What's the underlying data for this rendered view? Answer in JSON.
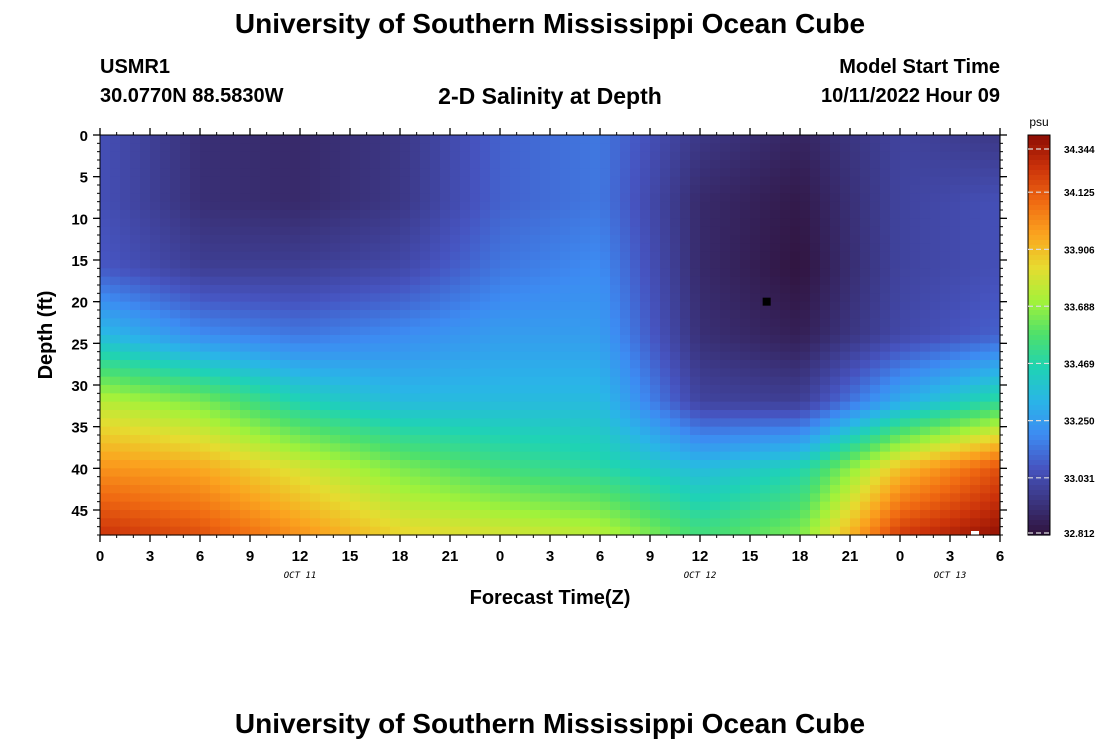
{
  "header": {
    "title": "University of Southern Mississippi Ocean Cube",
    "station": "USMR1",
    "coordinates": "30.0770N  88.5830W",
    "subtitle": "2-D Salinity at Depth",
    "model_start_label": "Model Start Time",
    "model_start_value": "10/11/2022 Hour 09"
  },
  "footer": {
    "title": "University of Southern Mississippi Ocean Cube"
  },
  "colors": {
    "palette": [
      "#30123b",
      "#3b3580",
      "#4654c0",
      "#3d8bf2",
      "#2ab4e8",
      "#1fd3b4",
      "#4de06c",
      "#a2f23a",
      "#e6dc30",
      "#fba41f",
      "#f06a12",
      "#cc330a",
      "#8b0c03"
    ]
  },
  "chart_data": {
    "type": "heatmap",
    "xlabel": "Forecast Time(Z)",
    "ylabel": "Depth (ft)",
    "x_ticks": [
      "0",
      "3",
      "6",
      "9",
      "12",
      "15",
      "18",
      "21",
      "0",
      "3",
      "6",
      "9",
      "12",
      "15",
      "18",
      "21",
      "0",
      "3",
      "6"
    ],
    "xlim_hours": [
      0,
      54
    ],
    "date_labels": [
      {
        "label": "OCT 11",
        "at_hour": 12
      },
      {
        "label": "OCT 12",
        "at_hour": 36
      },
      {
        "label": "OCT 13",
        "at_hour": 51
      }
    ],
    "y_ticks": [
      "0",
      "5",
      "10",
      "15",
      "20",
      "25",
      "30",
      "35",
      "40",
      "45"
    ],
    "ylim": [
      0,
      48
    ],
    "y_inverted": true,
    "colorbar": {
      "unit": "psu",
      "min": 32.812,
      "max": 34.344,
      "tick_labels": [
        "34.344",
        "34.125",
        "33.906",
        "33.688",
        "33.469",
        "33.250",
        "33.031",
        "32.812"
      ]
    },
    "markers": [
      {
        "type": "minimum",
        "hour": 40,
        "depth_ft": 20,
        "color": "#000000"
      },
      {
        "type": "maximum",
        "hour": 52.5,
        "depth_ft": 48,
        "color": "#ffffff"
      }
    ],
    "salinity_grid_psu": {
      "hours": [
        0,
        6,
        12,
        18,
        24,
        30,
        36,
        42,
        48,
        54
      ],
      "depths_ft": [
        0,
        8,
        16,
        24,
        32,
        40,
        48
      ],
      "values": [
        [
          33.05,
          32.92,
          32.9,
          32.95,
          33.1,
          33.15,
          32.95,
          32.88,
          33.0,
          32.95
        ],
        [
          33.05,
          32.92,
          32.9,
          32.95,
          33.1,
          33.15,
          32.9,
          32.84,
          33.0,
          33.05
        ],
        [
          33.08,
          32.98,
          32.98,
          33.02,
          33.15,
          33.2,
          32.9,
          32.82,
          33.0,
          33.05
        ],
        [
          33.35,
          33.2,
          33.15,
          33.2,
          33.25,
          33.25,
          32.92,
          32.86,
          33.02,
          33.1
        ],
        [
          33.75,
          33.65,
          33.45,
          33.35,
          33.35,
          33.35,
          33.0,
          32.98,
          33.3,
          33.5
        ],
        [
          34.0,
          33.95,
          33.8,
          33.65,
          33.55,
          33.48,
          33.35,
          33.45,
          33.9,
          34.15
        ],
        [
          34.22,
          34.15,
          34.0,
          33.85,
          33.8,
          33.75,
          33.55,
          33.65,
          34.2,
          34.33
        ]
      ]
    }
  }
}
